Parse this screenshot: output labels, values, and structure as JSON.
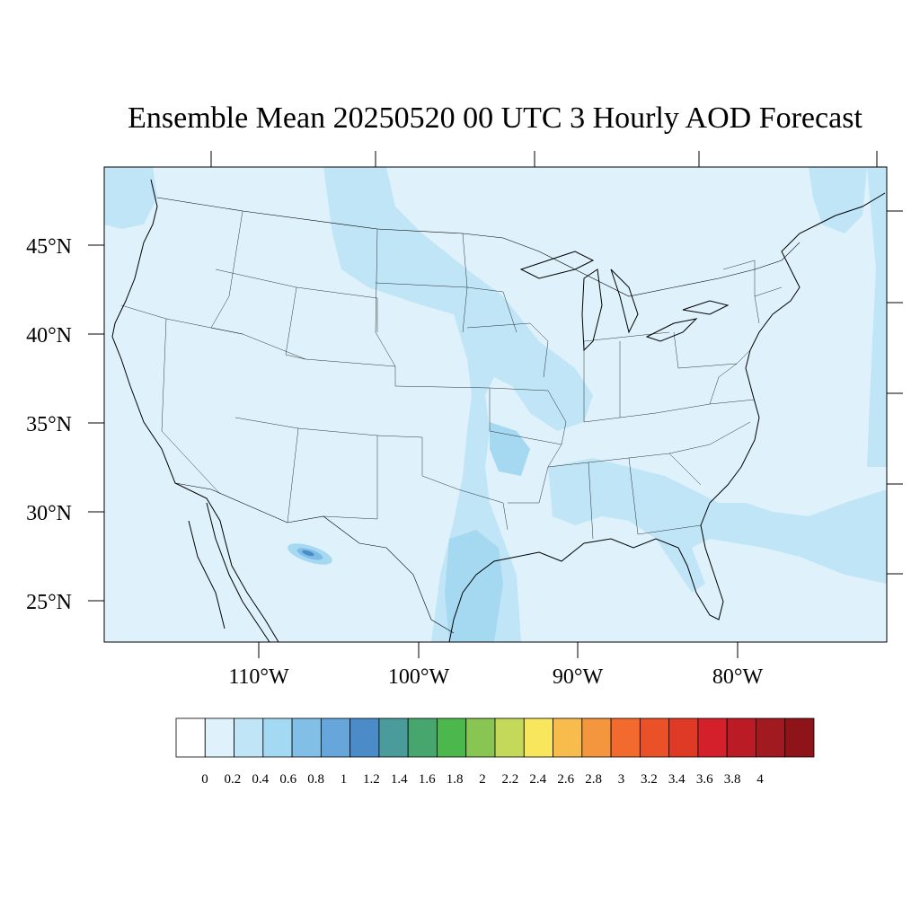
{
  "title": "Ensemble Mean 20250520 00 UTC 3 Hourly AOD Forecast",
  "map": {
    "lat_labels": [
      "45°N",
      "40°N",
      "35°N",
      "30°N",
      "25°N"
    ],
    "lon_labels": [
      "110°W",
      "100°W",
      "90°W",
      "80°W"
    ],
    "field_colors": {
      "background": "#dff2fb",
      "level_0_4": "#bfe5f7",
      "level_0_6": "#a5d9f2",
      "level_0_8": "#7fbde6",
      "level_1_0": "#4a8bc8"
    },
    "outline_color": "#000000"
  },
  "colorbar": {
    "labels": [
      "0",
      "0.2",
      "0.4",
      "0.6",
      "0.8",
      "1",
      "1.2",
      "1.4",
      "1.6",
      "1.8",
      "2",
      "2.2",
      "2.4",
      "2.6",
      "2.8",
      "3",
      "3.2",
      "3.4",
      "3.6",
      "3.8",
      "4"
    ],
    "colors": [
      "#ffffff",
      "#dff2fb",
      "#bfe5f7",
      "#a3d9f3",
      "#82bfe6",
      "#67a6da",
      "#4a8bc8",
      "#4a9b9b",
      "#46a66e",
      "#4cb74d",
      "#88c552",
      "#c4d85a",
      "#f8e65c",
      "#f7bc4c",
      "#f4963d",
      "#f26a2d",
      "#ea5129",
      "#de3a26",
      "#d3202a",
      "#bb1b25",
      "#a01a1f",
      "#8e1419"
    ]
  }
}
